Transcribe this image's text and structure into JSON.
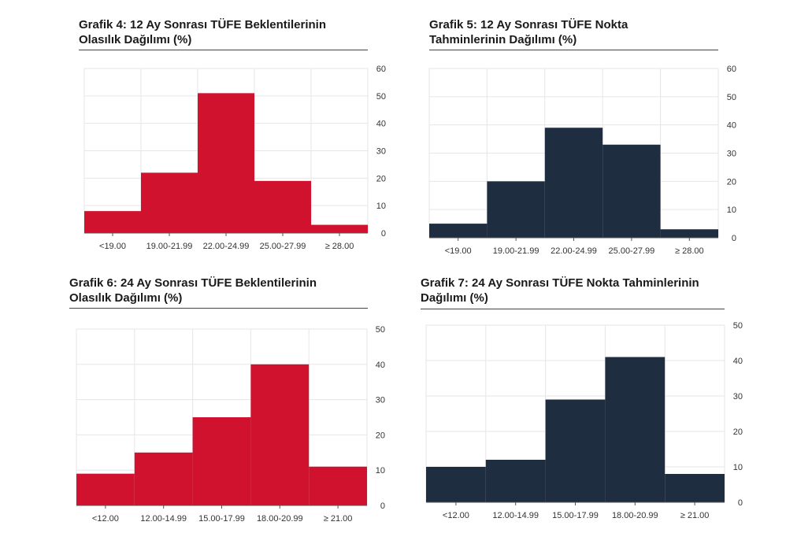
{
  "colors": {
    "red": "#d1122f",
    "navy": "#1f2d40",
    "grid": "#e6e6e6",
    "axis": "#555555"
  },
  "charts": [
    {
      "title_line1": "Grafik 4: 12 Ay Sonrası TÜFE Beklentilerinin",
      "title_line2": "Olasılık Dağılımı (%)"
    },
    {
      "title_line1": "Grafik 5: 12 Ay Sonrası TÜFE Nokta",
      "title_line2": "Tahminlerinin Dağılımı (%)"
    },
    {
      "title_line1": "Grafik 6: 24 Ay Sonrası TÜFE Beklentilerinin",
      "title_line2": "Olasılık Dağılımı (%)"
    },
    {
      "title_line1": "Grafik 7: 24 Ay Sonrası TÜFE Nokta Tahminlerinin",
      "title_line2": "Dağılımı (%)"
    }
  ],
  "chart_data": [
    {
      "type": "bar",
      "title": "Grafik 4: 12 Ay Sonrası TÜFE Beklentilerinin Olasılık Dağılımı (%)",
      "categories": [
        "<19.00",
        "19.00-21.99",
        "22.00-24.99",
        "25.00-27.99",
        "≥ 28.00"
      ],
      "values": [
        8,
        22,
        51,
        19,
        3
      ],
      "ylim": [
        0,
        60
      ],
      "yticks": [
        0,
        10,
        20,
        30,
        40,
        50,
        60
      ],
      "yaxis_side": "right",
      "color": "red"
    },
    {
      "type": "bar",
      "title": "Grafik 5: 12 Ay Sonrası TÜFE Nokta Tahminlerinin Dağılımı (%)",
      "categories": [
        "<19.00",
        "19.00-21.99",
        "22.00-24.99",
        "25.00-27.99",
        "≥ 28.00"
      ],
      "values": [
        5,
        20,
        39,
        33,
        3
      ],
      "ylim": [
        0,
        60
      ],
      "yticks": [
        0,
        10,
        20,
        30,
        40,
        50,
        60
      ],
      "yaxis_side": "right",
      "color": "navy"
    },
    {
      "type": "bar",
      "title": "Grafik 6: 24 Ay Sonrası TÜFE Beklentilerinin Olasılık Dağılımı (%)",
      "categories": [
        "<12.00",
        "12.00-14.99",
        "15.00-17.99",
        "18.00-20.99",
        "≥ 21.00"
      ],
      "values": [
        9,
        15,
        25,
        40,
        11
      ],
      "ylim": [
        0,
        50
      ],
      "yticks": [
        0,
        10,
        20,
        30,
        40,
        50
      ],
      "yaxis_side": "right",
      "color": "red"
    },
    {
      "type": "bar",
      "title": "Grafik 7: 24 Ay Sonrası TÜFE Nokta Tahminlerinin Dağılımı (%)",
      "categories": [
        "<12.00",
        "12.00-14.99",
        "15.00-17.99",
        "18.00-20.99",
        "≥ 21.00"
      ],
      "values": [
        10,
        12,
        29,
        41,
        8
      ],
      "ylim": [
        0,
        50
      ],
      "yticks": [
        0,
        10,
        20,
        30,
        40,
        50
      ],
      "yaxis_side": "right",
      "color": "navy"
    }
  ]
}
